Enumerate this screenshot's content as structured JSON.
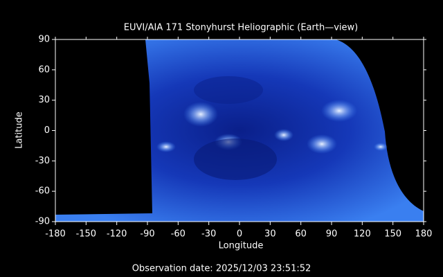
{
  "chart_data": {
    "type": "image",
    "title": "EUVI/AIA 171 Stonyhurst Heliographic (Earth—view)",
    "xlabel": "Longitude",
    "ylabel": "Latitude",
    "footer": "Observation date: 2025/12/03 23:51:52",
    "xlim": [
      -180,
      180
    ],
    "xticks": [
      -180,
      -150,
      -120,
      -90,
      -60,
      -30,
      0,
      30,
      60,
      90,
      120,
      150,
      180
    ],
    "ylim": [
      -90,
      90
    ],
    "yticks": [
      -90,
      -60,
      -30,
      0,
      30,
      60,
      90
    ]
  }
}
